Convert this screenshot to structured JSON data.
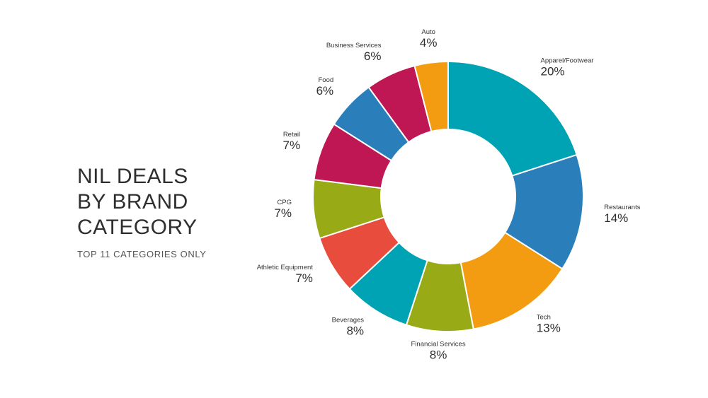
{
  "title_lines": [
    "NIL DEALS",
    "BY BRAND",
    "CATEGORY"
  ],
  "subtitle": "TOP 11 CATEGORIES ONLY",
  "chart_data": {
    "type": "pie",
    "donut": true,
    "title": "NIL DEALS BY BRAND CATEGORY",
    "subtitle": "TOP 11 CATEGORIES ONLY",
    "categories": [
      "Apparel/Footwear",
      "Restaurants",
      "Tech",
      "Financial Services",
      "Beverages",
      "Athletic Equipment",
      "CPG",
      "Retail",
      "Food",
      "Business Services",
      "Auto"
    ],
    "values": [
      20,
      14,
      13,
      8,
      8,
      7,
      7,
      7,
      6,
      6,
      4
    ],
    "value_labels": [
      "20%",
      "14%",
      "13%",
      "8%",
      "8%",
      "7%",
      "7%",
      "7%",
      "6%",
      "6%",
      "4%"
    ],
    "colors": [
      "#00a3b4",
      "#2a7fba",
      "#f39c12",
      "#98ab16",
      "#00a3b4",
      "#e74c3c",
      "#98ab16",
      "#bf1654",
      "#2a7fba",
      "#bf1654",
      "#f39c12"
    ],
    "start_position": "top, clockwise",
    "legend": "none"
  }
}
